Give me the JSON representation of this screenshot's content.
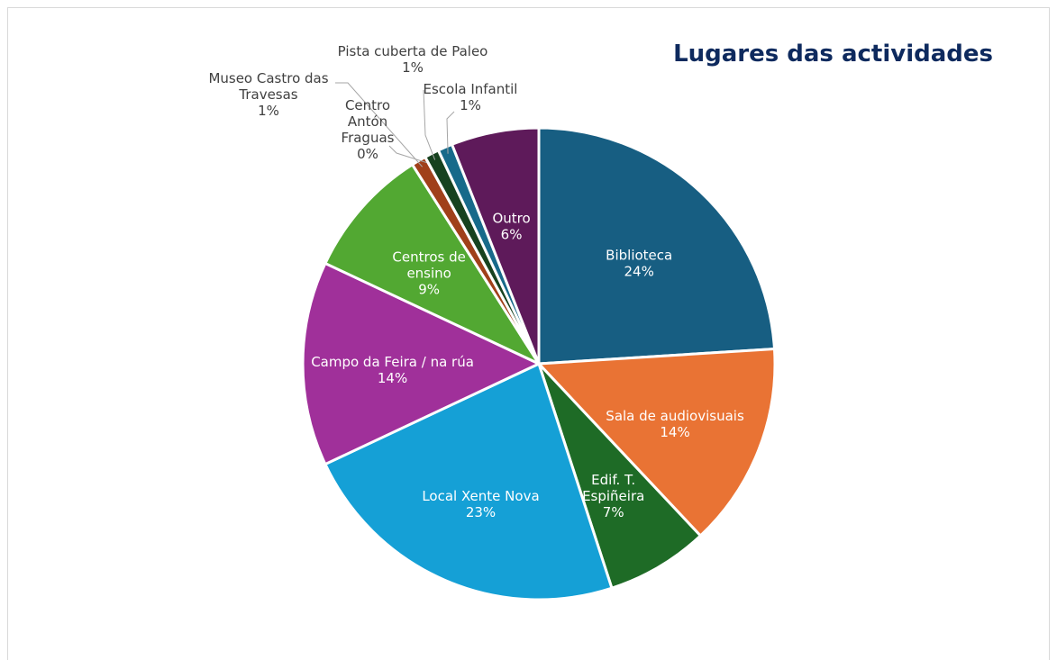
{
  "chart_data": {
    "type": "pie",
    "title": "Lugares das actividades",
    "categories": [
      "Biblioteca",
      "Sala de audiovisuais",
      "Edif. T. Espiñeira",
      "Local Xente Nova",
      "Campo da Feira / na rúa",
      "Centros de ensino",
      "Museo Castro das Travesas",
      "Centro Antón Fraguas",
      "Pista cuberta de Paleo",
      "Escola Infantil",
      "Outro"
    ],
    "values": [
      24,
      14,
      7,
      23,
      14,
      9,
      1,
      0,
      1,
      1,
      6
    ],
    "value_labels": [
      "24%",
      "14%",
      "7%",
      "23%",
      "14%",
      "9%",
      "1%",
      "0%",
      "1%",
      "1%",
      "6%"
    ],
    "colors": [
      "#175e82",
      "#e97334",
      "#1e6b26",
      "#15a0d6",
      "#a0309a",
      "#52a832",
      "#a0401a",
      "#1e5c2e",
      "#17421f",
      "#176a8a",
      "#5e1a5a"
    ]
  }
}
